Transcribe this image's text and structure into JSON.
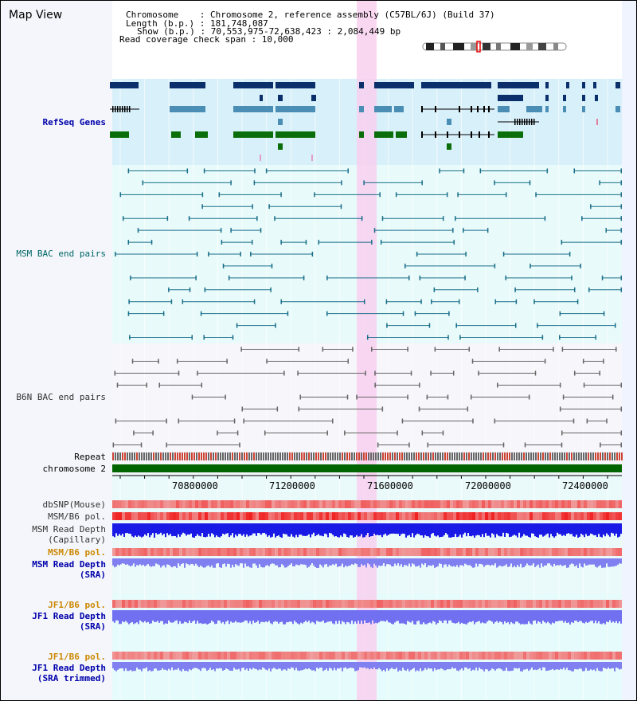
{
  "header": {
    "title": "Map View",
    "chromosome_line": "Chromosome    : Chromosome 2, reference assembly (C57BL/6J) (Build 37)",
    "length_line": "Length (b.p.) : 181,748,087",
    "show_line": "Show (b.p.) : 70,553,975-72,638,423 : 2,084,449 bp",
    "coverage_line": "Read coverage check span : 10,000"
  },
  "tracks": {
    "refseq": "RefSeq Genes",
    "msm_bac": "MSM BAC end pairs",
    "b6n_bac": "B6N BAC end pairs",
    "repeat": "Repeat",
    "chromosome": "chromosome 2",
    "dbsnp": "dbSNP(Mouse)",
    "msm_b6_pol_1": "MSM/B6 pol.",
    "msm_read_depth_cap_1": "MSM Read Depth",
    "msm_read_depth_cap_2": "(Capillary)",
    "msm_b6_pol_2": "MSM/B6 pol.",
    "msm_read_depth_sra_1": "MSM Read Depth",
    "msm_read_depth_sra_2": "(SRA)",
    "jf1_b6_pol_1": "JF1/B6 pol.",
    "jf1_read_depth_sra_1": "JF1 Read Depth",
    "jf1_read_depth_sra_2": "(SRA)",
    "jf1_b6_pol_2": "JF1/B6 pol.",
    "jf1_read_depth_trim_1": "JF1 Read Depth",
    "jf1_read_depth_trim_2": "(SRA trimmed)"
  },
  "axis": {
    "ticks": [
      "70800000",
      "71200000",
      "71600000",
      "72000000",
      "72400000"
    ]
  },
  "colors": {
    "refseq_label": "#0000aa",
    "msm_label": "#006666",
    "b6n_label": "#333333",
    "pol_label": "#cc8800",
    "depth_label": "#0000aa",
    "highlight": "#f8d0ee"
  }
}
